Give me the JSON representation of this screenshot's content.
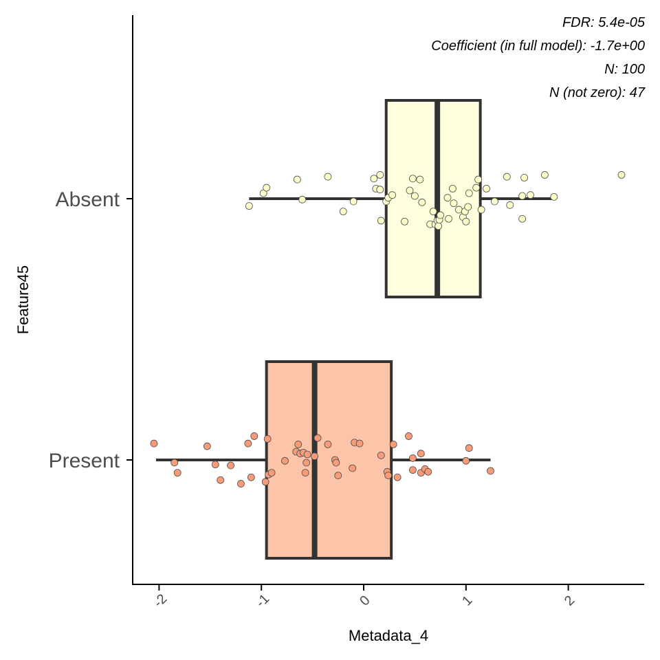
{
  "chart_data": {
    "type": "boxplot",
    "orientation": "horizontal",
    "xlabel": "Metadata_4",
    "ylabel": "Feature45",
    "xlim": [
      -2.25,
      2.75
    ],
    "xticks": [
      -2,
      -1,
      0,
      1,
      2
    ],
    "xtick_labels": [
      "-2",
      "-1",
      "0",
      "1",
      "2"
    ],
    "grid": false,
    "annotations": [
      "FDR: 5.4e-05",
      "Coefficient (in full model): -1.7e+00",
      "N: 100",
      "N (not zero): 47"
    ],
    "groups": [
      {
        "name": "Absent",
        "fill": "#ffffe0",
        "point_fill": "#ffffcc",
        "box": {
          "whisker_low": -1.12,
          "q1": 0.22,
          "median": 0.72,
          "q3": 1.14,
          "whisker_high": 1.86
        },
        "points": [
          [
            -1.12,
            -0.08
          ],
          [
            -0.98,
            0.06
          ],
          [
            -0.95,
            0.12
          ],
          [
            -0.65,
            0.21
          ],
          [
            -0.6,
            -0.01
          ],
          [
            -0.35,
            0.24
          ],
          [
            -0.2,
            -0.14
          ],
          [
            -0.1,
            -0.03
          ],
          [
            0.1,
            0.22
          ],
          [
            0.12,
            0.11
          ],
          [
            0.16,
            0.1
          ],
          [
            0.16,
            0.26
          ],
          [
            0.17,
            -0.24
          ],
          [
            0.22,
            -0.03
          ],
          [
            0.24,
            0.01
          ],
          [
            0.28,
            0.04
          ],
          [
            0.4,
            -0.25
          ],
          [
            0.45,
            0.09
          ],
          [
            0.48,
            0.22
          ],
          [
            0.5,
            0.03
          ],
          [
            0.55,
            0.21
          ],
          [
            0.57,
            -0.04
          ],
          [
            0.65,
            -0.28
          ],
          [
            0.68,
            -0.14
          ],
          [
            0.7,
            -0.28
          ],
          [
            0.72,
            -0.24
          ],
          [
            0.73,
            -0.3
          ],
          [
            0.74,
            -0.23
          ],
          [
            0.75,
            -0.18
          ],
          [
            0.82,
            0.01
          ],
          [
            0.83,
            -0.22
          ],
          [
            0.87,
            0.11
          ],
          [
            0.88,
            -0.05
          ],
          [
            0.93,
            -0.12
          ],
          [
            0.97,
            -0.2
          ],
          [
            0.99,
            -0.14
          ],
          [
            1.0,
            -0.25
          ],
          [
            1.02,
            -0.09
          ],
          [
            1.03,
            0.06
          ],
          [
            1.1,
            0.12
          ],
          [
            1.12,
            0.21
          ],
          [
            1.15,
            -0.12
          ],
          [
            1.2,
            0.11
          ],
          [
            1.28,
            -0.03
          ],
          [
            1.4,
            0.24
          ],
          [
            1.43,
            -0.07
          ],
          [
            1.55,
            0.03
          ],
          [
            1.55,
            -0.22
          ],
          [
            1.57,
            0.23
          ],
          [
            1.63,
            0.04
          ],
          [
            1.77,
            0.26
          ],
          [
            1.86,
            0.02
          ],
          [
            2.52,
            0.26
          ]
        ]
      },
      {
        "name": "Present",
        "fill": "#fcc5aa",
        "point_fill": "#f89b78",
        "box": {
          "whisker_low": -2.03,
          "q1": -0.95,
          "median": -0.48,
          "q3": 0.27,
          "whisker_high": 1.24
        },
        "points": [
          [
            -2.05,
            0.18
          ],
          [
            -1.85,
            -0.03
          ],
          [
            -1.82,
            -0.14
          ],
          [
            -1.53,
            0.15
          ],
          [
            -1.45,
            -0.05
          ],
          [
            -1.4,
            -0.22
          ],
          [
            -1.3,
            -0.06
          ],
          [
            -1.2,
            -0.26
          ],
          [
            -1.13,
            0.18
          ],
          [
            -1.1,
            -0.19
          ],
          [
            -1.07,
            0.26
          ],
          [
            -0.96,
            -0.24
          ],
          [
            -0.94,
            0.23
          ],
          [
            -0.93,
            -0.16
          ],
          [
            -0.9,
            -0.14
          ],
          [
            -0.77,
            -0.01
          ],
          [
            -0.66,
            0.09
          ],
          [
            -0.64,
            0.17
          ],
          [
            -0.62,
            0.07
          ],
          [
            -0.59,
            0.08
          ],
          [
            -0.57,
            -0.14
          ],
          [
            -0.56,
            -0.03
          ],
          [
            -0.55,
            0.06
          ],
          [
            -0.48,
            0.04
          ],
          [
            -0.45,
            0.24
          ],
          [
            -0.35,
            0.17
          ],
          [
            -0.28,
            0.0
          ],
          [
            -0.27,
            -0.03
          ],
          [
            -0.25,
            -0.17
          ],
          [
            -0.11,
            -0.09
          ],
          [
            -0.09,
            0.19
          ],
          [
            -0.04,
            0.18
          ],
          [
            0.17,
            0.05
          ],
          [
            0.23,
            -0.13
          ],
          [
            0.24,
            -0.17
          ],
          [
            0.29,
            0.17
          ],
          [
            0.33,
            -0.19
          ],
          [
            0.44,
            0.26
          ],
          [
            0.48,
            0.02
          ],
          [
            0.48,
            -0.11
          ],
          [
            0.56,
            0.07
          ],
          [
            0.56,
            -0.14
          ],
          [
            0.6,
            -0.1
          ],
          [
            0.63,
            -0.13
          ],
          [
            1.0,
            -0.01
          ],
          [
            1.03,
            0.13
          ],
          [
            1.24,
            -0.12
          ]
        ]
      }
    ]
  }
}
